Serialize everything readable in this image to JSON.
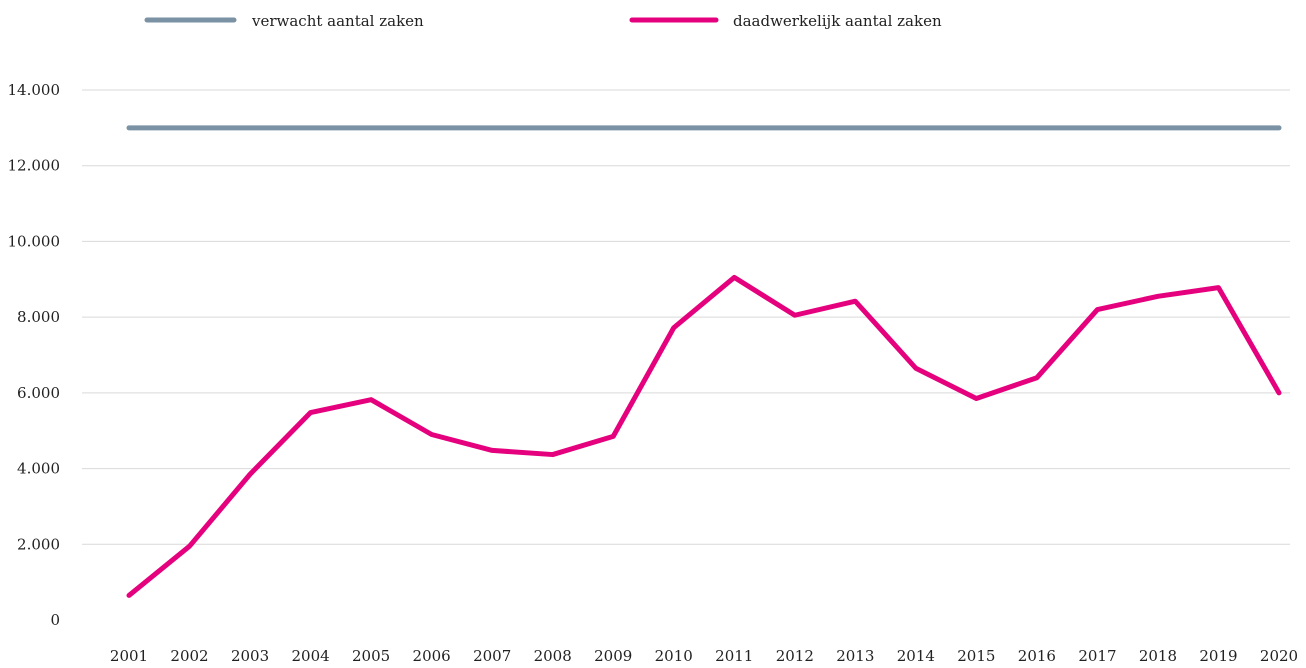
{
  "chart_data": {
    "type": "line",
    "title": "",
    "xlabel": "",
    "ylabel": "",
    "categories": [
      "2001",
      "2002",
      "2003",
      "2004",
      "2005",
      "2006",
      "2007",
      "2008",
      "2009",
      "2010",
      "2011",
      "2012",
      "2013",
      "2014",
      "2015",
      "2016",
      "2017",
      "2018",
      "2019",
      "2020"
    ],
    "y_tick_labels": [
      "0",
      "2.000",
      "4.000",
      "6.000",
      "8.000",
      "10.000",
      "12.000",
      "14.000"
    ],
    "y_ticks": [
      0,
      2000,
      4000,
      6000,
      8000,
      10000,
      12000,
      14000
    ],
    "ylim": [
      0,
      14000
    ],
    "grid": true,
    "legend_position": "top-left",
    "series": [
      {
        "name": "verwacht aantal zaken",
        "color": "#7a92a3",
        "values": [
          13000,
          13000,
          13000,
          13000,
          13000,
          13000,
          13000,
          13000,
          13000,
          13000,
          13000,
          13000,
          13000,
          13000,
          13000,
          13000,
          13000,
          13000,
          13000,
          13000
        ]
      },
      {
        "name": "daadwerkelijk aantal zaken",
        "color": "#e5007d",
        "values": [
          650,
          1950,
          3850,
          5480,
          5820,
          4900,
          4480,
          4370,
          4850,
          7720,
          9050,
          8050,
          8420,
          6650,
          5850,
          6400,
          8200,
          8550,
          8780,
          6000
        ]
      }
    ]
  }
}
